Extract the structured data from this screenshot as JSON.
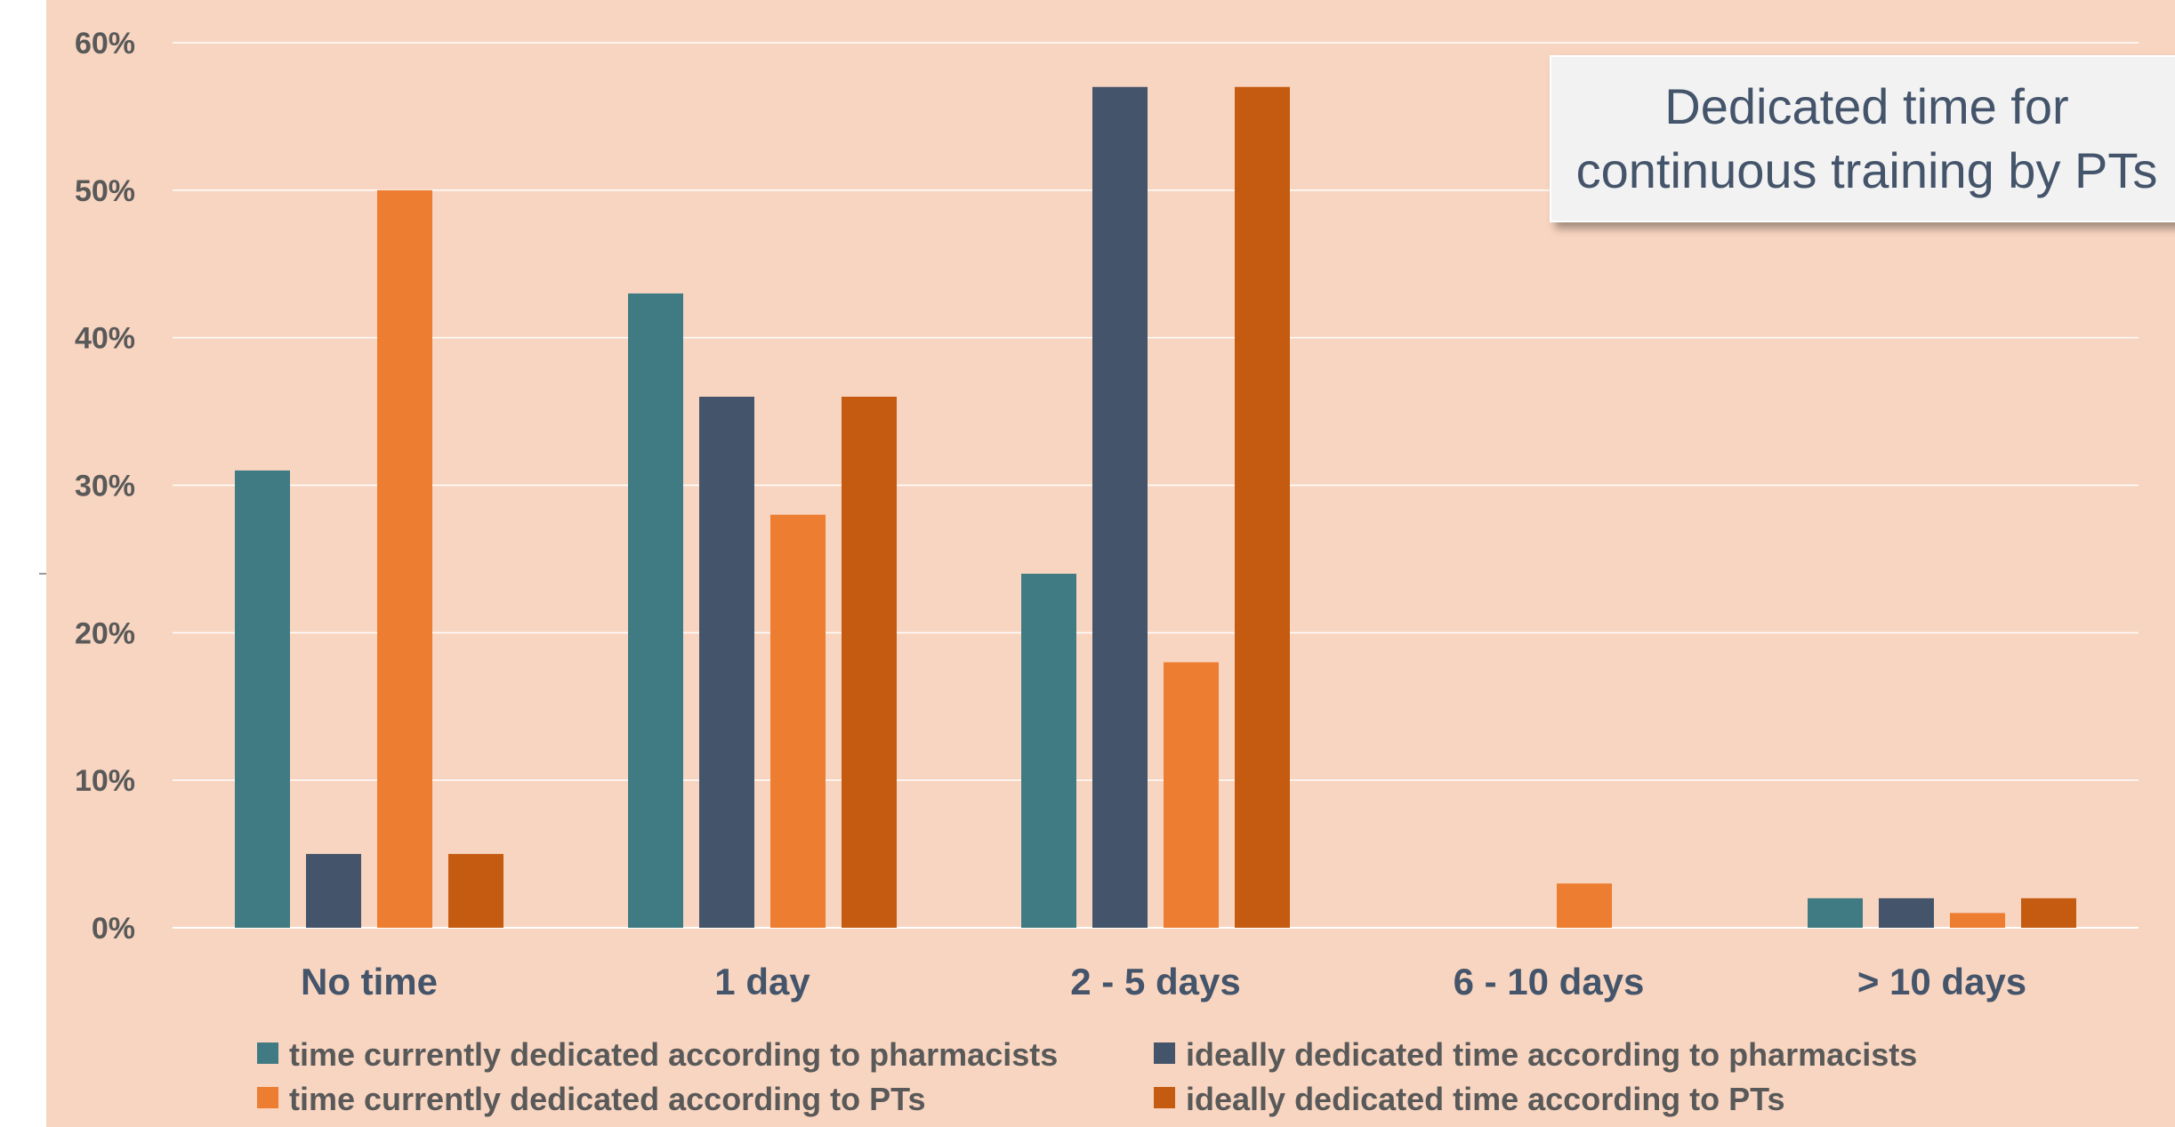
{
  "colors": {
    "background": "#F8D5C0",
    "gridline": "#FFFFFF",
    "axis_text": "#595959",
    "category_text": "#44546A",
    "series": [
      "#407B83",
      "#44546A",
      "#ED7D31",
      "#C55A11"
    ]
  },
  "chart_data": {
    "type": "bar",
    "categories": [
      "No time",
      "1 day",
      "2 - 5 days",
      "6 - 10 days",
      "> 10 days"
    ],
    "series": [
      {
        "name": "time currently dedicated according to pharmacists",
        "values": [
          31,
          43,
          24,
          0,
          2
        ]
      },
      {
        "name": "ideally dedicated time according to pharmacists",
        "values": [
          5,
          36,
          57,
          0,
          2
        ]
      },
      {
        "name": "time currently dedicated according to PTs",
        "values": [
          50,
          28,
          18,
          3,
          1
        ]
      },
      {
        "name": "ideally dedicated time according to PTs",
        "values": [
          5,
          36,
          57,
          0,
          2
        ]
      }
    ],
    "ylim": [
      0,
      60
    ],
    "yticks": [
      "0%",
      "10%",
      "20%",
      "30%",
      "40%",
      "50%",
      "60%"
    ],
    "grid": true,
    "legend_position": "bottom",
    "annotation": "Dedicated time for\ncontinuous training by PTs"
  }
}
